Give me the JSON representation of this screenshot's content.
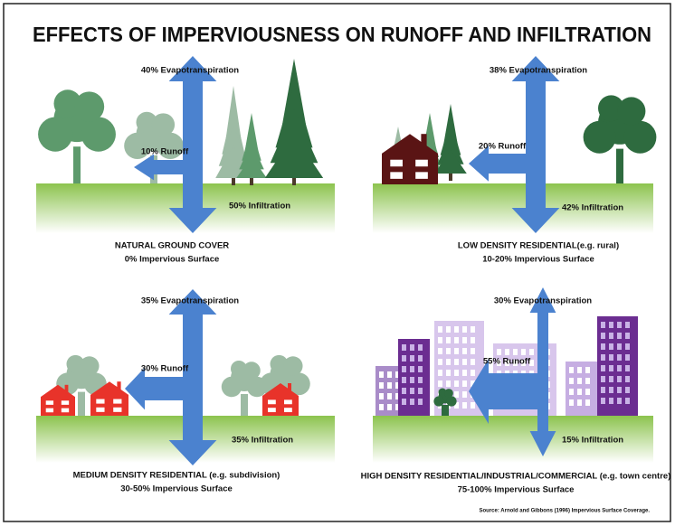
{
  "title": "EFFECTS OF IMPERVIOUSNESS ON RUNOFF AND INFILTRATION",
  "panels": [
    {
      "evapotranspiration": "40% Evapotranspiration",
      "runoff": "10% Runoff",
      "infiltration": "50% Infiltration",
      "caption": "NATURAL GROUND COVER",
      "subcaption": "0% Impervious Surface"
    },
    {
      "evapotranspiration": "38% Evapotranspiration",
      "runoff": "20% Runoff",
      "infiltration": "42% Infiltration",
      "caption": "LOW DENSITY RESIDENTIAL(e.g. rural)",
      "subcaption": "10-20% Impervious Surface"
    },
    {
      "evapotranspiration": "35% Evapotranspiration",
      "runoff": "30% Runoff",
      "infiltration": "35% Infiltration",
      "caption": "MEDIUM DENSITY RESIDENTIAL (e.g. subdivision)",
      "subcaption": "30-50% Impervious Surface"
    },
    {
      "evapotranspiration": "30% Evapotranspiration",
      "runoff": "55% Runoff",
      "infiltration": "15% Infiltration",
      "caption": "HIGH DENSITY RESIDENTIAL/INDUSTRIAL/COMMERCIAL (e.g. town centre)",
      "subcaption": "75-100% Impervious Surface"
    }
  ],
  "source": "Source: Arnold and Gibbons (1996) Impervious Surface Coverage."
}
